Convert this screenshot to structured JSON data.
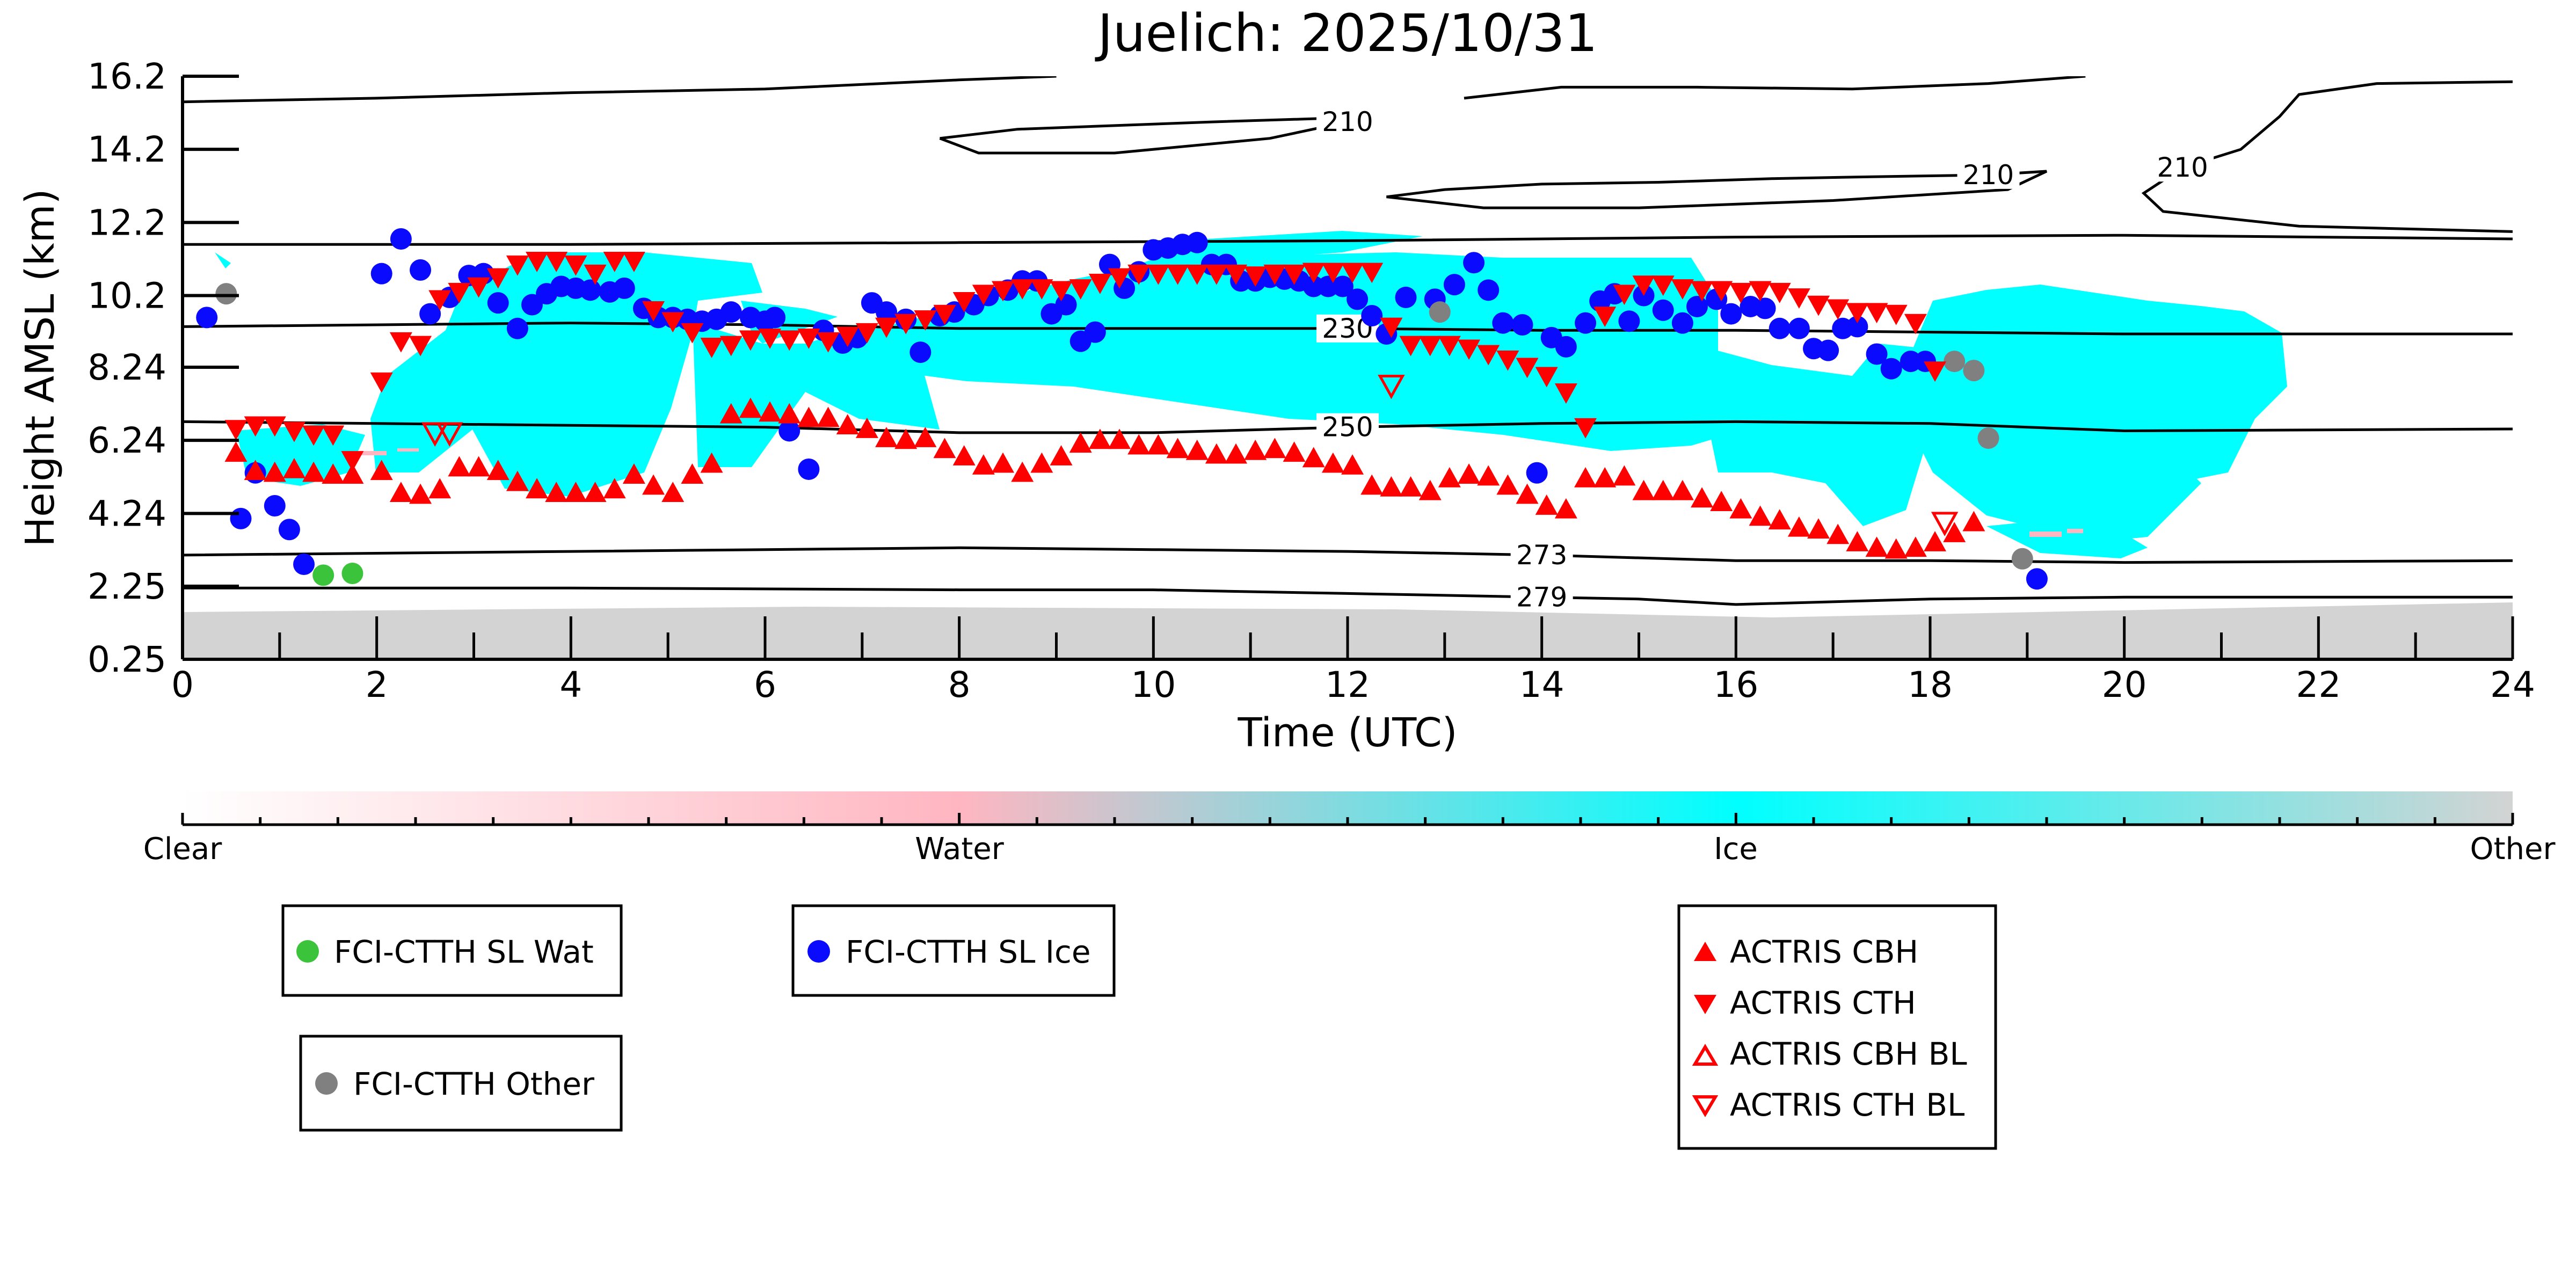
{
  "chart_data": {
    "type": "scatter",
    "title": "Juelich: 2025/10/31",
    "xlabel": "Time (UTC)",
    "ylabel": "Height AMSL (km)",
    "xlim": [
      0,
      24
    ],
    "ylim": [
      0.25,
      16.2
    ],
    "xticks": [
      "0",
      "2",
      "4",
      "6",
      "8",
      "10",
      "12",
      "14",
      "16",
      "18",
      "20",
      "22",
      "24"
    ],
    "yticks": [
      "0.25",
      "2.25",
      "4.24",
      "6.24",
      "8.24",
      "10.2",
      "12.2",
      "14.2",
      "16.2"
    ],
    "grid": false,
    "colorbar": {
      "labels": [
        "Clear",
        "Water",
        "Ice",
        "Other"
      ],
      "colors": [
        "#ffffff",
        "#ffb6c1",
        "#00ffff",
        "#d3d3d3"
      ]
    },
    "contours": {
      "levels": [
        "210",
        "230",
        "250",
        "273",
        "279"
      ],
      "lines": [
        {
          "label": "273",
          "points": [
            [
              0,
              3.1
            ],
            [
              4,
              3.2
            ],
            [
              8,
              3.3
            ],
            [
              10,
              3.25
            ],
            [
              12,
              3.2
            ],
            [
              14,
              3.1
            ],
            [
              16,
              2.95
            ],
            [
              18,
              2.95
            ],
            [
              20,
              2.9
            ],
            [
              24,
              2.95
            ]
          ]
        },
        {
          "label": "279",
          "points": [
            [
              0,
              2.2
            ],
            [
              4,
              2.2
            ],
            [
              8,
              2.15
            ],
            [
              10,
              2.15
            ],
            [
              12,
              2.05
            ],
            [
              14,
              1.95
            ],
            [
              15,
              1.9
            ],
            [
              16,
              1.75
            ],
            [
              18,
              1.9
            ],
            [
              20,
              1.95
            ],
            [
              24,
              1.95
            ]
          ]
        },
        {
          "label": "250",
          "points": [
            [
              0,
              6.75
            ],
            [
              2,
              6.7
            ],
            [
              4,
              6.65
            ],
            [
              6,
              6.6
            ],
            [
              8,
              6.45
            ],
            [
              10,
              6.45
            ],
            [
              12,
              6.6
            ],
            [
              14,
              6.7
            ],
            [
              16,
              6.75
            ],
            [
              18,
              6.7
            ],
            [
              20,
              6.5
            ],
            [
              24,
              6.55
            ]
          ]
        },
        {
          "label": "230",
          "points": [
            [
              0,
              9.35
            ],
            [
              2,
              9.4
            ],
            [
              4,
              9.45
            ],
            [
              6,
              9.4
            ],
            [
              8,
              9.3
            ],
            [
              10,
              9.3
            ],
            [
              12,
              9.3
            ],
            [
              14,
              9.25
            ],
            [
              16,
              9.25
            ],
            [
              18,
              9.2
            ],
            [
              20,
              9.15
            ],
            [
              24,
              9.15
            ]
          ]
        },
        {
          "label": "",
          "points": [
            [
              0,
              11.6
            ],
            [
              4,
              11.6
            ],
            [
              8,
              11.65
            ],
            [
              12,
              11.7
            ],
            [
              16,
              11.8
            ],
            [
              20,
              11.85
            ],
            [
              24,
              11.75
            ]
          ]
        },
        {
          "label": "",
          "points": [
            [
              0,
              15.5
            ],
            [
              2,
              15.6
            ],
            [
              4,
              15.75
            ],
            [
              6,
              15.85
            ],
            [
              8,
              16.1
            ],
            [
              9,
              16.2
            ]
          ]
        },
        {
          "label": "210",
          "points": [
            [
              7.8,
              14.5
            ],
            [
              8.6,
              14.75
            ],
            [
              9.6,
              14.85
            ],
            [
              10.6,
              14.95
            ],
            [
              11.8,
              15.05
            ],
            [
              12.0,
              14.95
            ],
            [
              11.2,
              14.5
            ],
            [
              9.6,
              14.1
            ],
            [
              8.2,
              14.1
            ],
            [
              7.8,
              14.5
            ]
          ]
        },
        {
          "label": "210",
          "points": [
            [
              12.4,
              12.9
            ],
            [
              13.0,
              13.1
            ],
            [
              14.0,
              13.25
            ],
            [
              15.2,
              13.3
            ],
            [
              16.4,
              13.4
            ],
            [
              17.4,
              13.45
            ],
            [
              18.6,
              13.5
            ],
            [
              19.2,
              13.6
            ],
            [
              18.8,
              13.1
            ],
            [
              17.0,
              12.8
            ],
            [
              15.0,
              12.6
            ],
            [
              13.4,
              12.6
            ],
            [
              12.4,
              12.9
            ]
          ]
        },
        {
          "label": "",
          "points": [
            [
              13.2,
              15.6
            ],
            [
              14.2,
              15.9
            ],
            [
              15.6,
              15.9
            ],
            [
              17.2,
              15.85
            ],
            [
              18.6,
              16.0
            ],
            [
              19.6,
              16.2
            ]
          ]
        },
        {
          "label": "210",
          "points": [
            [
              24.0,
              16.05
            ],
            [
              22.6,
              16.0
            ],
            [
              21.8,
              15.7
            ],
            [
              21.6,
              15.1
            ],
            [
              21.2,
              14.2
            ],
            [
              20.6,
              13.7
            ],
            [
              20.2,
              13.0
            ],
            [
              20.4,
              12.5
            ],
            [
              21.8,
              12.1
            ],
            [
              24.0,
              11.95
            ]
          ]
        }
      ]
    },
    "series": [
      {
        "name": "FCI-CTTH SL Wat",
        "marker": "circle",
        "color": "#3bc43b",
        "x": [
          1.45,
          1.75
        ],
        "y": [
          2.55,
          2.6
        ]
      },
      {
        "name": "FCI-CTTH SL Ice",
        "marker": "circle",
        "color": "#0a0aff",
        "x": [
          0.25,
          0.6,
          0.75,
          0.95,
          1.1,
          1.25,
          2.05,
          2.25,
          2.45,
          2.55,
          2.75,
          2.95,
          3.1,
          3.25,
          3.45,
          3.6,
          3.75,
          3.9,
          4.05,
          4.2,
          4.4,
          4.55,
          4.75,
          4.9,
          5.05,
          5.2,
          5.35,
          5.5,
          5.65,
          5.85,
          6.0,
          6.1,
          6.25,
          6.45,
          6.6,
          6.8,
          6.95,
          7.1,
          7.25,
          7.45,
          7.6,
          7.8,
          7.95,
          8.15,
          8.3,
          8.5,
          8.65,
          8.8,
          8.95,
          9.1,
          9.25,
          9.4,
          9.55,
          9.7,
          9.85,
          10.0,
          10.15,
          10.3,
          10.45,
          10.6,
          10.75,
          10.9,
          11.05,
          11.2,
          11.35,
          11.5,
          11.65,
          11.8,
          11.95,
          12.1,
          12.25,
          12.4,
          12.6,
          12.9,
          13.1,
          13.3,
          13.45,
          13.6,
          13.8,
          13.95,
          14.1,
          14.25,
          14.45,
          14.6,
          14.75,
          14.9,
          15.05,
          15.25,
          15.45,
          15.6,
          15.8,
          15.95,
          16.15,
          16.3,
          16.45,
          16.65,
          16.8,
          16.95,
          17.1,
          17.25,
          17.45,
          17.6,
          17.8,
          17.95,
          19.1
        ],
        "y": [
          9.6,
          4.1,
          5.35,
          4.45,
          3.8,
          2.85,
          10.8,
          11.75,
          10.9,
          9.7,
          10.15,
          10.75,
          10.8,
          10.0,
          9.3,
          9.95,
          10.25,
          10.45,
          10.4,
          10.35,
          10.3,
          10.4,
          9.85,
          9.6,
          9.6,
          9.55,
          9.5,
          9.55,
          9.75,
          9.6,
          9.5,
          9.6,
          6.5,
          5.45,
          9.25,
          8.9,
          9.05,
          10.0,
          9.75,
          9.55,
          8.65,
          9.65,
          9.75,
          9.95,
          10.2,
          10.35,
          10.6,
          10.6,
          9.7,
          9.95,
          8.95,
          9.2,
          11.05,
          10.4,
          10.85,
          11.45,
          11.5,
          11.6,
          11.65,
          11.05,
          11.05,
          10.6,
          10.6,
          10.7,
          10.65,
          10.6,
          10.45,
          10.45,
          10.45,
          10.1,
          9.65,
          9.15,
          10.15,
          10.1,
          10.5,
          11.1,
          10.35,
          9.45,
          9.4,
          5.35,
          9.05,
          8.8,
          9.45,
          10.05,
          10.25,
          9.5,
          10.2,
          9.8,
          9.45,
          9.9,
          10.1,
          9.7,
          9.9,
          9.85,
          9.3,
          9.3,
          8.75,
          8.7,
          9.3,
          9.35,
          8.6,
          8.2,
          8.4,
          8.4,
          2.45
        ]
      },
      {
        "name": "FCI-CTTH Other",
        "marker": "circle",
        "color": "#808080",
        "x": [
          0.45,
          12.95,
          18.25,
          18.45,
          18.6,
          18.95
        ],
        "y": [
          10.25,
          9.75,
          8.4,
          8.15,
          6.3,
          3.0
        ]
      },
      {
        "name": "ACTRIS CBH",
        "marker": "triangle-up",
        "color": "#ff0000",
        "x": [
          0.55,
          0.75,
          0.95,
          1.15,
          1.35,
          1.55,
          1.75,
          2.05,
          2.25,
          2.45,
          2.65,
          2.85,
          3.05,
          3.25,
          3.45,
          3.65,
          3.85,
          4.05,
          4.25,
          4.45,
          4.65,
          4.85,
          5.05,
          5.25,
          5.45,
          5.65,
          5.85,
          6.05,
          6.25,
          6.45,
          6.65,
          6.85,
          7.05,
          7.25,
          7.45,
          7.65,
          7.85,
          8.05,
          8.25,
          8.45,
          8.65,
          8.85,
          9.05,
          9.25,
          9.45,
          9.65,
          9.85,
          10.05,
          10.25,
          10.45,
          10.65,
          10.85,
          11.05,
          11.25,
          11.45,
          11.65,
          11.85,
          12.05,
          12.25,
          12.45,
          12.65,
          12.85,
          13.05,
          13.25,
          13.45,
          13.65,
          13.85,
          14.05,
          14.25,
          14.45,
          14.65,
          14.85,
          15.05,
          15.25,
          15.45,
          15.65,
          15.85,
          16.05,
          16.25,
          16.45,
          16.65,
          16.85,
          17.05,
          17.25,
          17.45,
          17.65,
          17.85,
          18.05,
          18.25,
          18.45
        ],
        "y": [
          5.9,
          5.4,
          5.35,
          5.45,
          5.35,
          5.3,
          5.3,
          5.4,
          4.8,
          4.75,
          4.9,
          5.5,
          5.5,
          5.4,
          5.1,
          4.9,
          4.8,
          4.8,
          4.8,
          4.9,
          5.3,
          5.0,
          4.8,
          5.3,
          5.6,
          6.95,
          7.1,
          7.0,
          6.95,
          6.85,
          6.85,
          6.65,
          6.55,
          6.3,
          6.25,
          6.3,
          6.0,
          5.8,
          5.55,
          5.6,
          5.35,
          5.6,
          5.8,
          6.15,
          6.25,
          6.25,
          6.1,
          6.1,
          6.0,
          5.95,
          5.85,
          5.85,
          5.95,
          6.0,
          5.9,
          5.75,
          5.6,
          5.55,
          5.0,
          4.95,
          4.95,
          4.85,
          5.2,
          5.3,
          5.25,
          5.0,
          4.75,
          4.45,
          4.35,
          5.2,
          5.2,
          5.25,
          4.85,
          4.85,
          4.85,
          4.65,
          4.55,
          4.35,
          4.15,
          4.05,
          3.85,
          3.8,
          3.65,
          3.45,
          3.3,
          3.25,
          3.3,
          3.45,
          3.7,
          4.0
        ]
      },
      {
        "name": "ACTRIS CTH",
        "marker": "triangle-down",
        "color": "#ff0000",
        "x": [
          0.55,
          0.75,
          0.95,
          1.15,
          1.35,
          1.55,
          1.75,
          2.05,
          2.25,
          2.45,
          2.65,
          2.85,
          3.05,
          3.25,
          3.45,
          3.65,
          3.85,
          4.05,
          4.25,
          4.45,
          4.65,
          4.85,
          5.05,
          5.25,
          5.45,
          5.65,
          5.85,
          6.05,
          6.25,
          6.45,
          6.65,
          6.85,
          7.05,
          7.25,
          7.45,
          7.65,
          7.85,
          8.05,
          8.25,
          8.45,
          8.65,
          8.85,
          9.05,
          9.25,
          9.45,
          9.65,
          9.85,
          10.05,
          10.25,
          10.45,
          10.65,
          10.85,
          11.05,
          11.25,
          11.45,
          11.65,
          11.85,
          12.05,
          12.25,
          12.45,
          12.65,
          12.85,
          13.05,
          13.25,
          13.45,
          13.65,
          13.85,
          14.05,
          14.25,
          14.45,
          14.65,
          14.85,
          15.05,
          15.25,
          15.45,
          15.65,
          15.85,
          16.05,
          16.25,
          16.45,
          16.65,
          16.85,
          17.05,
          17.25,
          17.45,
          17.65,
          17.85,
          18.05
        ],
        "y": [
          6.55,
          6.65,
          6.65,
          6.5,
          6.4,
          6.4,
          5.7,
          7.85,
          8.95,
          8.85,
          10.1,
          10.3,
          10.45,
          10.7,
          11.05,
          11.15,
          11.15,
          11.05,
          10.8,
          11.15,
          11.15,
          9.8,
          9.5,
          9.2,
          8.8,
          8.85,
          9.0,
          9.05,
          9.0,
          9.05,
          8.95,
          9.1,
          9.2,
          9.35,
          9.45,
          9.55,
          9.7,
          10.05,
          10.25,
          10.35,
          10.4,
          10.4,
          10.35,
          10.4,
          10.55,
          10.7,
          10.8,
          10.8,
          10.8,
          10.8,
          10.8,
          10.8,
          10.75,
          10.8,
          10.8,
          10.85,
          10.85,
          10.85,
          10.85,
          9.35,
          8.85,
          8.85,
          8.85,
          8.75,
          8.6,
          8.45,
          8.25,
          8.0,
          7.55,
          6.6,
          9.65,
          10.25,
          10.5,
          10.5,
          10.4,
          10.35,
          10.35,
          10.3,
          10.35,
          10.3,
          10.15,
          9.95,
          9.85,
          9.75,
          9.75,
          9.7,
          9.45,
          8.15
        ]
      },
      {
        "name": "ACTRIS CBH BL",
        "marker": "triangle-up-open",
        "color": "#ff0000",
        "x": [],
        "y": []
      },
      {
        "name": "ACTRIS CTH BL",
        "marker": "triangle-down-open",
        "color": "#ff0000",
        "x": [
          2.6,
          2.75,
          12.45,
          18.15
        ],
        "y": [
          6.45,
          6.45,
          7.75,
          4.0
        ]
      }
    ],
    "legend_groups": [
      [
        "FCI-CTTH SL Wat",
        "FCI-CTTH Other"
      ],
      [
        "FCI-CTTH SL Ice"
      ],
      [
        "ACTRIS CBH",
        "ACTRIS CTH",
        "ACTRIS CBH BL",
        "ACTRIS CTH BL"
      ]
    ]
  }
}
